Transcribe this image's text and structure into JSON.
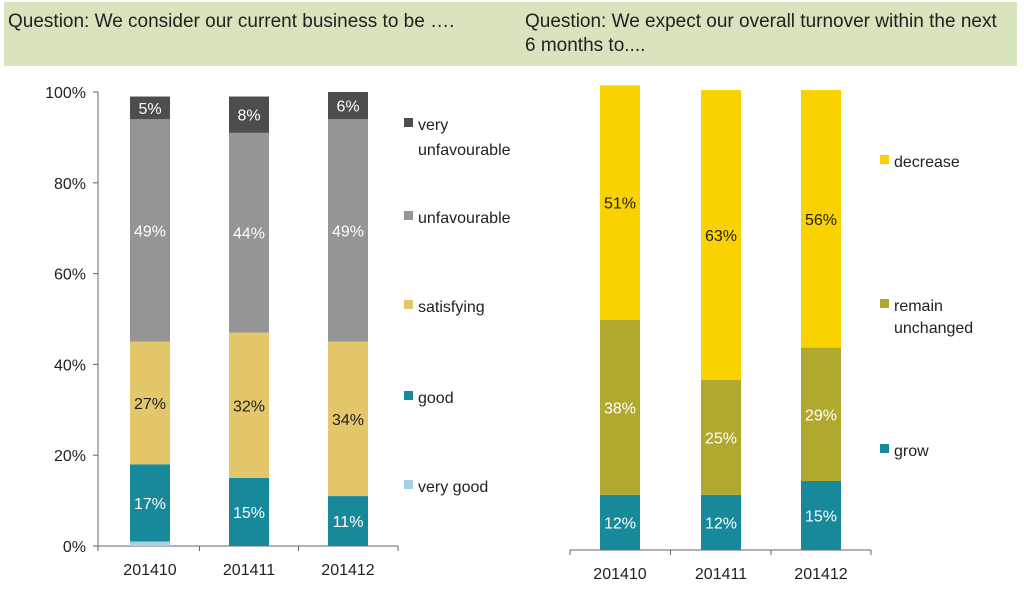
{
  "questions": {
    "left": "Question: We consider our current business to be ….",
    "right": "Question: We expect our overall turnover within the next 6 months to...."
  },
  "chart_data": [
    {
      "type": "bar",
      "stacked": true,
      "categories": [
        "201410",
        "201411",
        "201412"
      ],
      "ylim": [
        0,
        100
      ],
      "yticks": [
        "0%",
        "20%",
        "40%",
        "60%",
        "80%",
        "100%"
      ],
      "grid": false,
      "legend_placement": "right",
      "series": [
        {
          "name": "very good",
          "color": "#a8cfe2",
          "values": [
            1,
            0,
            0
          ],
          "labels": [
            "",
            "",
            ""
          ]
        },
        {
          "name": "good",
          "color": "#17899b",
          "values": [
            17,
            15,
            11
          ],
          "labels": [
            "17%",
            "15%",
            "11%"
          ]
        },
        {
          "name": "satisfying",
          "color": "#e3c76a",
          "values": [
            27,
            32,
            34
          ],
          "labels": [
            "27%",
            "32%",
            "34%"
          ]
        },
        {
          "name": "unfavourable",
          "color": "#959595",
          "values": [
            49,
            44,
            49
          ],
          "labels": [
            "49%",
            "44%",
            "49%"
          ]
        },
        {
          "name": "very unfavourable",
          "color": "#4d4d4d",
          "values": [
            5,
            8,
            6
          ],
          "labels": [
            "5%",
            "8%",
            "6%"
          ]
        }
      ]
    },
    {
      "type": "bar",
      "stacked": true,
      "categories": [
        "201410",
        "201411",
        "201412"
      ],
      "ylim": [
        0,
        100
      ],
      "grid": false,
      "legend_placement": "right",
      "series": [
        {
          "name": "grow",
          "color": "#17899b",
          "values": [
            12,
            12,
            15
          ],
          "labels": [
            "12%",
            "12%",
            "15%"
          ]
        },
        {
          "name": "remain unchanged",
          "color": "#b1a830",
          "values": [
            38,
            25,
            29
          ],
          "labels": [
            "38%",
            "25%",
            "29%"
          ]
        },
        {
          "name": "decrease",
          "color": "#fad200",
          "values": [
            51,
            63,
            56
          ],
          "labels": [
            "51%",
            "63%",
            "56%"
          ]
        }
      ]
    }
  ]
}
